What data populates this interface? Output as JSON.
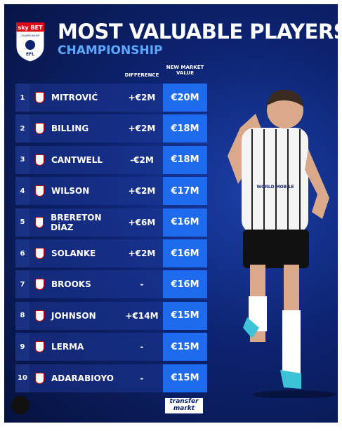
{
  "header": {
    "title": "MOST VALUABLE PLAYERS",
    "subtitle": "CHAMPIONSHIP",
    "logo": {
      "brand": "sky BET",
      "league": "CHAMPIONSHIP",
      "org": "EFL"
    }
  },
  "table": {
    "columns": [
      "DIFFERENCE",
      "NEW MARKET VALUE"
    ],
    "rows": [
      {
        "rank": 1,
        "player": "MITROVIĆ",
        "difference": "+€2M",
        "value": "€20M"
      },
      {
        "rank": 2,
        "player": "BILLING",
        "difference": "+€2M",
        "value": "€18M"
      },
      {
        "rank": 3,
        "player": "CANTWELL",
        "difference": "-€2M",
        "value": "€18M"
      },
      {
        "rank": 4,
        "player": "WILSON",
        "difference": "+€2M",
        "value": "€17M"
      },
      {
        "rank": 5,
        "player": "BRERETON DÍAZ",
        "difference": "+€6M",
        "value": "€16M"
      },
      {
        "rank": 6,
        "player": "SOLANKE",
        "difference": "+€2M",
        "value": "€16M"
      },
      {
        "rank": 7,
        "player": "BROOKS",
        "difference": "-",
        "value": "€16M"
      },
      {
        "rank": 8,
        "player": "JOHNSON",
        "difference": "+€14M",
        "value": "€15M"
      },
      {
        "rank": 9,
        "player": "LERMA",
        "difference": "-",
        "value": "€15M"
      },
      {
        "rank": 10,
        "player": "ADARABIOYO",
        "difference": "-",
        "value": "€15M"
      }
    ]
  },
  "player_image": {
    "sponsor": "WORLD MOBILE"
  },
  "footer": {
    "logo_top": "transfer",
    "logo_bottom": "markt"
  }
}
